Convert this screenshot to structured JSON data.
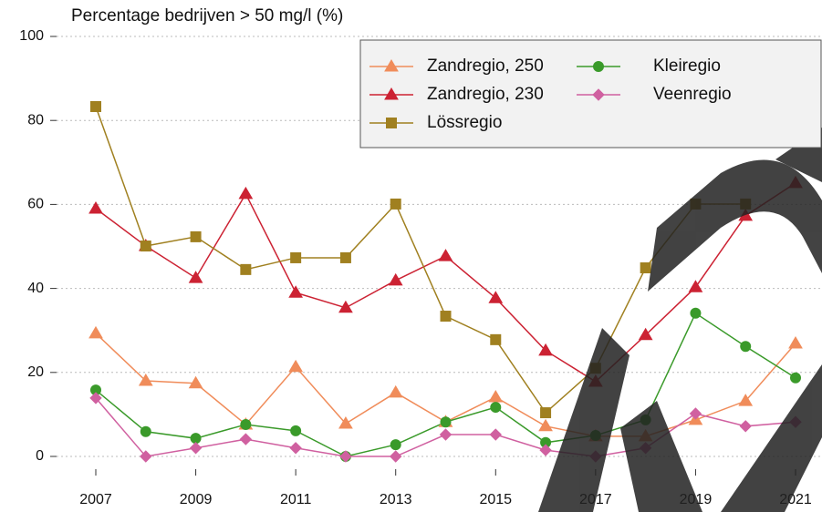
{
  "chart_data": {
    "type": "line",
    "title": "Percentage bedrijven > 50 mg/l (%)",
    "x": [
      2007,
      2008,
      2009,
      2010,
      2011,
      2012,
      2013,
      2014,
      2015,
      2016,
      2017,
      2018,
      2019,
      2020,
      2021
    ],
    "xlim": [
      2007,
      2021
    ],
    "xticks": [
      2007,
      2009,
      2011,
      2013,
      2015,
      2017,
      2019,
      2021
    ],
    "ylim": [
      0,
      100
    ],
    "yticks": [
      0,
      20,
      40,
      60,
      80,
      100
    ],
    "grid": true,
    "legend": "top-right",
    "series": [
      {
        "name": "Zandregio, 250",
        "color": "#f08c5a",
        "marker": "triangle",
        "values": [
          29.3,
          18,
          17.4,
          7.6,
          21.3,
          7.8,
          15.2,
          8.2,
          14.1,
          7.2,
          4.8,
          4.8,
          8.7,
          13.2,
          26.9
        ]
      },
      {
        "name": "Zandregio, 230",
        "color": "#cc2233",
        "marker": "triangle",
        "values": [
          59,
          50.1,
          42.5,
          62.5,
          39,
          35.4,
          41.9,
          47.7,
          37.7,
          25.2,
          17.8,
          28.9,
          40.3,
          57.3,
          65.1
        ]
      },
      {
        "name": "Lössregio",
        "color": "#a08020",
        "marker": "square",
        "values": [
          83.3,
          50.1,
          52.3,
          44.5,
          47.3,
          47.3,
          60.1,
          33.4,
          27.8,
          10.4,
          21,
          44.9,
          60.1,
          60.1,
          null
        ]
      },
      {
        "name": "Kleiregio",
        "color": "#3a9a2a",
        "marker": "circle",
        "values": [
          15.8,
          5.9,
          4.3,
          7.6,
          6.1,
          0,
          2.8,
          8.2,
          11.7,
          3.3,
          5,
          8.7,
          34.1,
          26.2,
          18.7
        ]
      },
      {
        "name": "Veenregio",
        "color": "#d060a0",
        "marker": "diamond",
        "values": [
          13.9,
          0,
          2,
          4.1,
          2,
          0,
          0,
          5.2,
          5.2,
          1.5,
          0,
          2,
          10.2,
          7.2,
          8.2
        ]
      }
    ]
  }
}
